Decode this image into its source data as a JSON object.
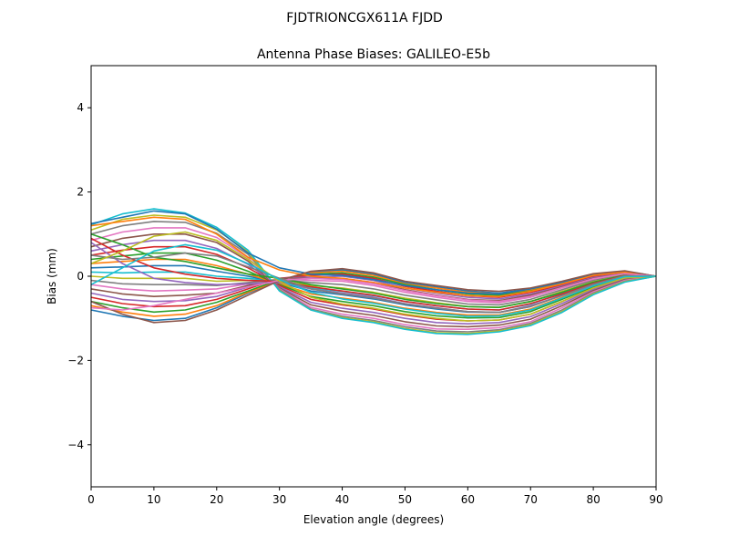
{
  "figure": {
    "suptitle": "FJDTRIONCGX611A FJDD"
  },
  "chart_data": {
    "type": "line",
    "title": "Antenna Phase Biases: GALILEO-E5b",
    "xlabel": "Elevation angle (degrees)",
    "ylabel": "Bias (mm)",
    "xlim": [
      0,
      90
    ],
    "ylim": [
      -5,
      5
    ],
    "xticks": [
      0,
      10,
      20,
      30,
      40,
      50,
      60,
      70,
      80,
      90
    ],
    "yticks": [
      -4,
      -2,
      0,
      2,
      4
    ],
    "xtick_labels": [
      "0",
      "10",
      "20",
      "30",
      "40",
      "50",
      "60",
      "70",
      "80",
      "90"
    ],
    "ytick_labels": [
      "−4",
      "−2",
      "0",
      "2",
      "4"
    ],
    "grid": false,
    "legend": "none",
    "x": [
      0,
      5,
      10,
      15,
      20,
      25,
      30,
      35,
      40,
      45,
      50,
      55,
      60,
      65,
      70,
      75,
      80,
      85,
      90
    ],
    "color_cycle": [
      "#1f77b4",
      "#ff7f0e",
      "#2ca02c",
      "#d62728",
      "#9467bd",
      "#8c564b",
      "#e377c2",
      "#7f7f7f",
      "#bcbd22",
      "#17becf"
    ],
    "series": [
      {
        "values": [
          -0.8,
          -0.95,
          -1.05,
          -1.0,
          -0.75,
          -0.4,
          -0.1,
          0.1,
          0.15,
          0.05,
          -0.15,
          -0.25,
          -0.35,
          -0.4,
          -0.3,
          -0.15,
          0.05,
          0.12,
          0.0
        ]
      },
      {
        "values": [
          -0.7,
          -0.85,
          -0.95,
          -0.9,
          -0.7,
          -0.38,
          -0.1,
          0.08,
          0.12,
          0.02,
          -0.18,
          -0.28,
          -0.38,
          -0.42,
          -0.32,
          -0.17,
          0.03,
          0.1,
          0.0
        ]
      },
      {
        "values": [
          -0.6,
          -0.75,
          -0.85,
          -0.8,
          -0.62,
          -0.35,
          -0.08,
          0.05,
          0.08,
          -0.02,
          -0.2,
          -0.32,
          -0.42,
          -0.45,
          -0.35,
          -0.19,
          0.01,
          0.09,
          0.0
        ]
      },
      {
        "values": [
          -0.5,
          -0.65,
          -0.72,
          -0.7,
          -0.55,
          -0.3,
          -0.05,
          0.02,
          0.05,
          -0.05,
          -0.24,
          -0.36,
          -0.46,
          -0.5,
          -0.38,
          -0.21,
          -0.01,
          0.08,
          0.0
        ]
      },
      {
        "values": [
          -0.4,
          -0.55,
          -0.6,
          -0.58,
          -0.48,
          -0.26,
          -0.05,
          -0.02,
          0.0,
          -0.1,
          -0.28,
          -0.4,
          -0.5,
          -0.54,
          -0.42,
          -0.23,
          -0.03,
          0.07,
          0.0
        ]
      },
      {
        "values": [
          -0.3,
          -0.42,
          -0.48,
          -0.45,
          -0.4,
          -0.22,
          -0.05,
          -0.05,
          -0.05,
          -0.15,
          -0.32,
          -0.45,
          -0.55,
          -0.58,
          -0.45,
          -0.25,
          -0.05,
          0.06,
          0.0
        ]
      },
      {
        "values": [
          -0.2,
          -0.3,
          -0.35,
          -0.33,
          -0.3,
          -0.18,
          -0.06,
          -0.1,
          -0.12,
          -0.22,
          -0.38,
          -0.5,
          -0.6,
          -0.63,
          -0.5,
          -0.28,
          -0.08,
          0.05,
          0.0
        ]
      },
      {
        "values": [
          -0.1,
          -0.18,
          -0.2,
          -0.2,
          -0.22,
          -0.15,
          -0.08,
          -0.15,
          -0.2,
          -0.3,
          -0.45,
          -0.56,
          -0.66,
          -0.68,
          -0.55,
          -0.32,
          -0.1,
          0.04,
          0.0
        ]
      },
      {
        "values": [
          0.0,
          -0.05,
          -0.05,
          -0.05,
          -0.12,
          -0.1,
          -0.1,
          -0.22,
          -0.28,
          -0.38,
          -0.52,
          -0.63,
          -0.72,
          -0.74,
          -0.6,
          -0.36,
          -0.13,
          0.03,
          0.0
        ]
      },
      {
        "values": [
          0.1,
          0.08,
          0.1,
          0.1,
          0.0,
          -0.05,
          -0.12,
          -0.28,
          -0.36,
          -0.46,
          -0.6,
          -0.7,
          -0.78,
          -0.8,
          -0.66,
          -0.4,
          -0.16,
          0.02,
          0.0
        ]
      },
      {
        "values": [
          0.2,
          0.22,
          0.25,
          0.25,
          0.12,
          0.0,
          -0.15,
          -0.35,
          -0.44,
          -0.54,
          -0.68,
          -0.78,
          -0.85,
          -0.86,
          -0.72,
          -0.45,
          -0.19,
          0.01,
          0.0
        ]
      },
      {
        "values": [
          0.3,
          0.35,
          0.4,
          0.4,
          0.25,
          0.05,
          -0.18,
          -0.42,
          -0.52,
          -0.62,
          -0.76,
          -0.86,
          -0.92,
          -0.92,
          -0.78,
          -0.5,
          -0.22,
          0.0,
          0.0
        ]
      },
      {
        "values": [
          0.4,
          0.48,
          0.55,
          0.55,
          0.38,
          0.12,
          -0.2,
          -0.48,
          -0.6,
          -0.7,
          -0.84,
          -0.94,
          -0.99,
          -0.98,
          -0.84,
          -0.55,
          -0.25,
          -0.02,
          0.0
        ]
      },
      {
        "values": [
          0.5,
          0.62,
          0.7,
          0.7,
          0.52,
          0.2,
          -0.22,
          -0.55,
          -0.68,
          -0.78,
          -0.92,
          -1.02,
          -1.06,
          -1.04,
          -0.9,
          -0.6,
          -0.28,
          -0.04,
          0.0
        ]
      },
      {
        "values": [
          0.6,
          0.75,
          0.85,
          0.85,
          0.66,
          0.28,
          -0.25,
          -0.62,
          -0.76,
          -0.86,
          -1.0,
          -1.1,
          -1.13,
          -1.1,
          -0.96,
          -0.65,
          -0.31,
          -0.06,
          0.0
        ]
      },
      {
        "values": [
          0.7,
          0.9,
          1.0,
          1.0,
          0.8,
          0.36,
          -0.28,
          -0.68,
          -0.83,
          -0.93,
          -1.08,
          -1.18,
          -1.2,
          -1.16,
          -1.02,
          -0.7,
          -0.34,
          -0.08,
          0.0
        ]
      },
      {
        "values": [
          0.85,
          1.05,
          1.15,
          1.15,
          0.92,
          0.44,
          -0.3,
          -0.74,
          -0.9,
          -1.0,
          -1.15,
          -1.25,
          -1.26,
          -1.22,
          -1.08,
          -0.75,
          -0.37,
          -0.1,
          0.0
        ]
      },
      {
        "values": [
          1.0,
          1.2,
          1.3,
          1.28,
          1.02,
          0.52,
          -0.32,
          -0.78,
          -0.95,
          -1.05,
          -1.2,
          -1.3,
          -1.32,
          -1.27,
          -1.12,
          -0.8,
          -0.4,
          -0.12,
          0.0
        ]
      },
      {
        "values": [
          1.1,
          1.35,
          1.45,
          1.4,
          1.1,
          0.58,
          -0.34,
          -0.8,
          -0.98,
          -1.08,
          -1.24,
          -1.34,
          -1.36,
          -1.3,
          -1.15,
          -0.84,
          -0.42,
          -0.13,
          0.0
        ]
      },
      {
        "values": [
          1.22,
          1.48,
          1.6,
          1.5,
          1.16,
          0.62,
          -0.35,
          -0.8,
          -1.0,
          -1.1,
          -1.26,
          -1.36,
          -1.38,
          -1.32,
          -1.17,
          -0.86,
          -0.44,
          -0.14,
          0.0
        ]
      },
      {
        "values": [
          1.25,
          1.4,
          1.55,
          1.48,
          1.12,
          0.55,
          0.2,
          0.05,
          0.02,
          -0.08,
          -0.22,
          -0.32,
          -0.4,
          -0.42,
          -0.3,
          -0.15,
          0.05,
          0.12,
          0.0
        ]
      },
      {
        "values": [
          1.2,
          1.3,
          1.4,
          1.35,
          1.0,
          0.45,
          0.15,
          0.0,
          -0.05,
          -0.15,
          -0.28,
          -0.38,
          -0.46,
          -0.48,
          -0.36,
          -0.18,
          0.02,
          0.1,
          0.0
        ]
      },
      {
        "values": [
          1.0,
          0.75,
          0.45,
          0.35,
          0.2,
          0.05,
          -0.05,
          -0.2,
          -0.3,
          -0.4,
          -0.55,
          -0.65,
          -0.72,
          -0.74,
          -0.6,
          -0.38,
          -0.14,
          0.03,
          0.0
        ]
      },
      {
        "values": [
          0.9,
          0.5,
          0.2,
          0.05,
          -0.05,
          -0.1,
          -0.12,
          -0.25,
          -0.35,
          -0.45,
          -0.6,
          -0.7,
          -0.78,
          -0.8,
          -0.65,
          -0.42,
          -0.17,
          0.02,
          0.0
        ]
      },
      {
        "values": [
          0.8,
          0.3,
          -0.05,
          -0.15,
          -0.2,
          -0.18,
          -0.15,
          -0.3,
          -0.4,
          -0.5,
          -0.65,
          -0.75,
          -0.84,
          -0.86,
          -0.7,
          -0.46,
          -0.2,
          0.01,
          0.0
        ]
      },
      {
        "values": [
          -0.6,
          -0.9,
          -1.1,
          -1.05,
          -0.8,
          -0.45,
          -0.1,
          0.12,
          0.18,
          0.08,
          -0.12,
          -0.22,
          -0.32,
          -0.36,
          -0.28,
          -0.12,
          0.06,
          0.13,
          0.0
        ]
      },
      {
        "values": [
          -0.75,
          -0.8,
          -0.7,
          -0.55,
          -0.4,
          -0.25,
          -0.1,
          -0.05,
          -0.08,
          -0.18,
          -0.34,
          -0.46,
          -0.56,
          -0.6,
          -0.48,
          -0.27,
          -0.06,
          0.06,
          0.0
        ]
      },
      {
        "values": [
          0.5,
          0.4,
          0.45,
          0.55,
          0.48,
          0.22,
          -0.05,
          -0.3,
          -0.42,
          -0.52,
          -0.66,
          -0.76,
          -0.84,
          -0.86,
          -0.72,
          -0.46,
          -0.19,
          0.01,
          0.0
        ]
      },
      {
        "values": [
          0.3,
          0.6,
          0.95,
          1.05,
          0.85,
          0.4,
          -0.12,
          -0.5,
          -0.66,
          -0.76,
          -0.9,
          -1.0,
          -1.06,
          -1.04,
          -0.9,
          -0.6,
          -0.28,
          -0.04,
          0.0
        ]
      },
      {
        "values": [
          -0.2,
          0.2,
          0.6,
          0.75,
          0.62,
          0.3,
          -0.08,
          -0.38,
          -0.54,
          -0.64,
          -0.78,
          -0.88,
          -0.95,
          -0.94,
          -0.8,
          -0.52,
          -0.23,
          -0.01,
          0.0
        ]
      }
    ]
  }
}
